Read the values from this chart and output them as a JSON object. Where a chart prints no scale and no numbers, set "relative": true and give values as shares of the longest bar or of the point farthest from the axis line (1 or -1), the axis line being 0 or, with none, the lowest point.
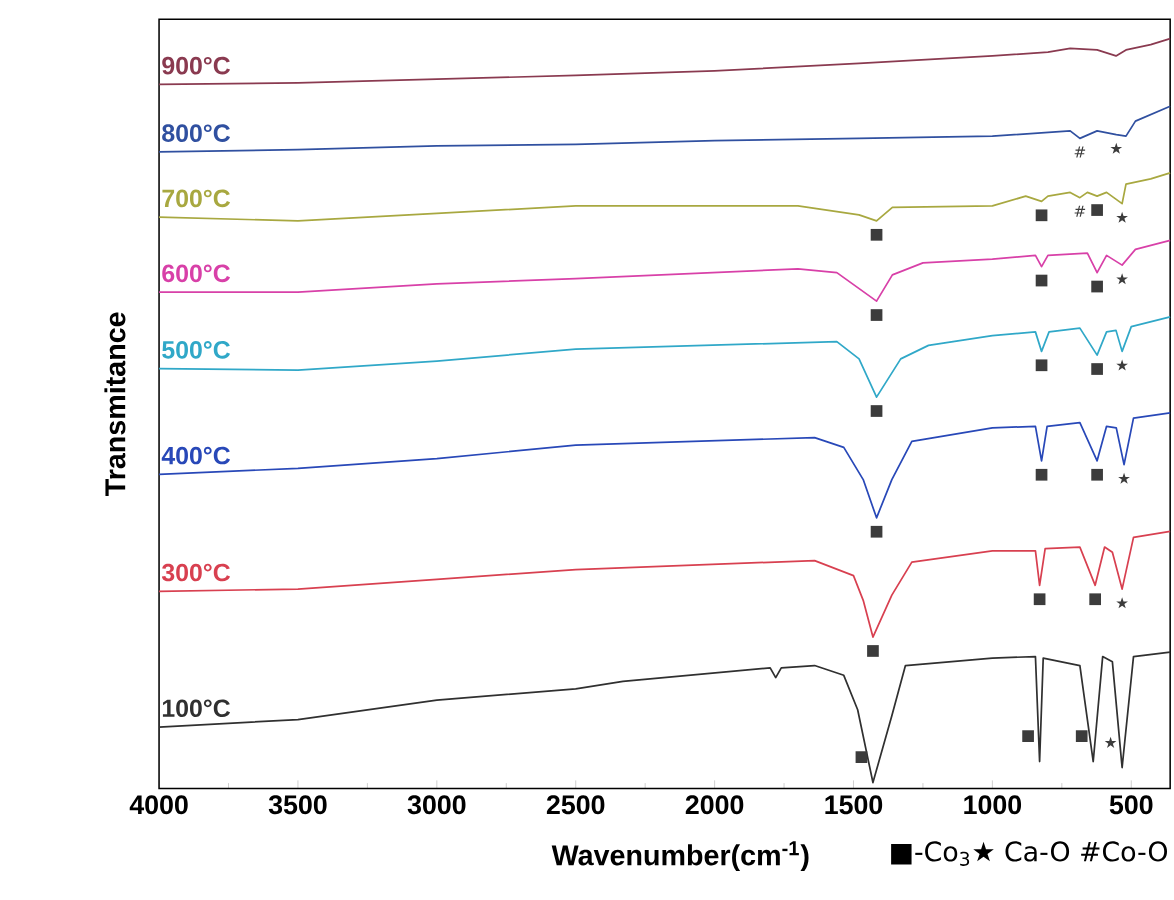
{
  "chart_data": {
    "type": "line",
    "relative": true,
    "xlabel": "Wavenumber(cm$^{-1}$)",
    "ylabel": "Transmitance",
    "xlim": [
      4000,
      360
    ],
    "xticks": [
      4000,
      3500,
      3000,
      2500,
      2000,
      1500,
      1000,
      500
    ],
    "series": [
      {
        "name": "900°C",
        "color": "#8a3a50",
        "x": [
          4000,
          3500,
          3000,
          2500,
          2000,
          1480,
          1000,
          800,
          720,
          623,
          555,
          519,
          430,
          360
        ],
        "values": [
          0.939,
          0.941,
          0.946,
          0.951,
          0.957,
          0.967,
          0.977,
          0.982,
          0.987,
          0.985,
          0.977,
          0.985,
          0.992,
          1.0
        ]
      },
      {
        "name": "800°C",
        "color": "#3050a0",
        "x": [
          4000,
          3500,
          3000,
          2500,
          2000,
          1480,
          1000,
          720,
          685,
          623,
          554,
          519,
          485,
          360
        ],
        "values": [
          0.849,
          0.852,
          0.857,
          0.859,
          0.864,
          0.867,
          0.87,
          0.877,
          0.867,
          0.877,
          0.872,
          0.87,
          0.89,
          0.91
        ]
      },
      {
        "name": "700°C",
        "color": "#a8a840",
        "x": [
          4000,
          3500,
          3000,
          2500,
          1700,
          1480,
          1417,
          1360,
          1000,
          880,
          823,
          800,
          720,
          685,
          658,
          623,
          589,
          533,
          519,
          430,
          360
        ],
        "values": [
          0.762,
          0.757,
          0.767,
          0.777,
          0.777,
          0.765,
          0.757,
          0.775,
          0.777,
          0.79,
          0.783,
          0.79,
          0.795,
          0.788,
          0.795,
          0.79,
          0.795,
          0.78,
          0.806,
          0.813,
          0.821
        ]
      },
      {
        "name": "600°C",
        "color": "#d840a8",
        "x": [
          4000,
          3500,
          3000,
          2500,
          1700,
          1560,
          1417,
          1360,
          1250,
          1000,
          845,
          823,
          800,
          658,
          623,
          589,
          533,
          485,
          360
        ],
        "values": [
          0.662,
          0.662,
          0.673,
          0.68,
          0.693,
          0.688,
          0.65,
          0.685,
          0.701,
          0.706,
          0.711,
          0.696,
          0.711,
          0.714,
          0.688,
          0.711,
          0.698,
          0.719,
          0.731
        ]
      },
      {
        "name": "500°C",
        "color": "#30a8c8",
        "x": [
          4000,
          3500,
          3000,
          2500,
          1560,
          1480,
          1417,
          1330,
          1230,
          1000,
          845,
          823,
          796,
          685,
          623,
          589,
          555,
          533,
          500,
          360
        ],
        "values": [
          0.56,
          0.558,
          0.57,
          0.586,
          0.596,
          0.573,
          0.522,
          0.573,
          0.591,
          0.604,
          0.609,
          0.583,
          0.609,
          0.614,
          0.578,
          0.609,
          0.611,
          0.583,
          0.616,
          0.629
        ]
      },
      {
        "name": "400°C",
        "color": "#2848b8",
        "x": [
          4000,
          3500,
          3000,
          2500,
          1640,
          1535,
          1465,
          1417,
          1362,
          1290,
          1000,
          845,
          823,
          803,
          685,
          623,
          589,
          554,
          526,
          492,
          360
        ],
        "values": [
          0.419,
          0.427,
          0.44,
          0.458,
          0.468,
          0.455,
          0.412,
          0.361,
          0.412,
          0.463,
          0.481,
          0.483,
          0.437,
          0.483,
          0.488,
          0.437,
          0.483,
          0.481,
          0.432,
          0.494,
          0.501
        ]
      },
      {
        "name": "300°C",
        "color": "#d84050",
        "x": [
          4000,
          3500,
          3000,
          2500,
          1640,
          1500,
          1465,
          1430,
          1362,
          1290,
          1000,
          845,
          830,
          810,
          685,
          630,
          596,
          568,
          533,
          492,
          360
        ],
        "values": [
          0.263,
          0.266,
          0.279,
          0.292,
          0.304,
          0.284,
          0.251,
          0.202,
          0.258,
          0.302,
          0.317,
          0.317,
          0.271,
          0.32,
          0.322,
          0.271,
          0.322,
          0.315,
          0.266,
          0.335,
          0.343
        ]
      },
      {
        "name": "100°C",
        "color": "#303030",
        "x": [
          4000,
          3500,
          3000,
          2500,
          2330,
          1800,
          1780,
          1760,
          1640,
          1535,
          1485,
          1430,
          1362,
          1313,
          1000,
          845,
          830,
          817,
          685,
          637,
          603,
          568,
          533,
          492,
          360
        ],
        "values": [
          0.082,
          0.092,
          0.118,
          0.133,
          0.143,
          0.161,
          0.148,
          0.161,
          0.164,
          0.151,
          0.105,
          0.008,
          0.097,
          0.164,
          0.174,
          0.176,
          0.036,
          0.174,
          0.164,
          0.036,
          0.176,
          0.169,
          0.028,
          0.176,
          0.182
        ]
      }
    ],
    "annotations": [
      {
        "text": "#",
        "x": 685,
        "y": 0.867
      },
      {
        "text": "★",
        "x": 554,
        "y": 0.872
      },
      {
        "text": "■",
        "x": 1417,
        "y": 0.757
      },
      {
        "text": "■",
        "x": 823,
        "y": 0.783
      },
      {
        "text": "#",
        "x": 685,
        "y": 0.788
      },
      {
        "text": "■",
        "x": 623,
        "y": 0.79
      },
      {
        "text": "★",
        "x": 533,
        "y": 0.78
      },
      {
        "text": "■",
        "x": 1417,
        "y": 0.65
      },
      {
        "text": "■",
        "x": 823,
        "y": 0.696
      },
      {
        "text": "■",
        "x": 623,
        "y": 0.688
      },
      {
        "text": "★",
        "x": 533,
        "y": 0.698
      },
      {
        "text": "■",
        "x": 1417,
        "y": 0.522
      },
      {
        "text": "■",
        "x": 823,
        "y": 0.583
      },
      {
        "text": "■",
        "x": 623,
        "y": 0.578
      },
      {
        "text": "★",
        "x": 533,
        "y": 0.583
      },
      {
        "text": "■",
        "x": 1417,
        "y": 0.361
      },
      {
        "text": "■",
        "x": 823,
        "y": 0.437
      },
      {
        "text": "■",
        "x": 623,
        "y": 0.437
      },
      {
        "text": "★",
        "x": 526,
        "y": 0.432
      },
      {
        "text": "■",
        "x": 1430,
        "y": 0.202
      },
      {
        "text": "■",
        "x": 830,
        "y": 0.271
      },
      {
        "text": "■",
        "x": 630,
        "y": 0.271
      },
      {
        "text": "★",
        "x": 533,
        "y": 0.266
      },
      {
        "text": "■",
        "x": 1430,
        "y": 0.008
      },
      {
        "text": "■",
        "x": 830,
        "y": 0.036
      },
      {
        "text": "■",
        "x": 637,
        "y": 0.036
      },
      {
        "text": "★",
        "x": 533,
        "y": 0.028
      },
      "■-Co$_{3}$★ Ca-O #Co-O"
    ]
  }
}
